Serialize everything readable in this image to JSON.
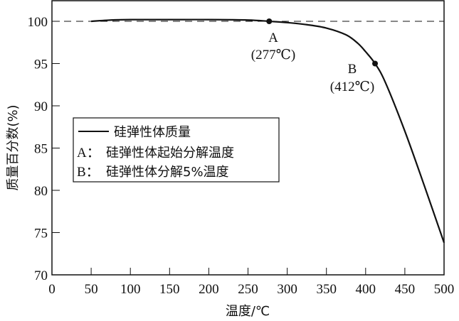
{
  "chart_data": {
    "type": "line",
    "title": "",
    "xlabel": "温度/℃",
    "ylabel": "质量百分数(%)",
    "xlim": [
      0,
      500
    ],
    "ylim": [
      70,
      102.5
    ],
    "xticks": [
      0,
      50,
      100,
      150,
      200,
      250,
      300,
      350,
      400,
      450,
      500
    ],
    "yticks": [
      70,
      75,
      80,
      85,
      90,
      95,
      100
    ],
    "grid": false,
    "reference_line": {
      "y": 100,
      "style": "dashed"
    },
    "series": [
      {
        "name": "硅弹性体质量",
        "x": [
          50,
          75,
          100,
          150,
          200,
          250,
          277,
          300,
          325,
          350,
          375,
          390,
          400,
          412,
          425,
          450,
          475,
          500
        ],
        "values": [
          100.0,
          100.15,
          100.2,
          100.2,
          100.2,
          100.15,
          100.0,
          99.85,
          99.6,
          99.2,
          98.4,
          97.4,
          96.4,
          95.0,
          92.8,
          87.0,
          80.5,
          73.8
        ]
      }
    ],
    "annotations": [
      {
        "label": "A",
        "text": "(277℃)",
        "x": 277,
        "y": 100.0
      },
      {
        "label": "B",
        "text": "(412℃)",
        "x": 412,
        "y": 95.0
      }
    ],
    "legend": {
      "position": "center-left",
      "entries": [
        "硅弹性体质量",
        "A：硅弹性体起始分解温度",
        "B：硅弹性体分解5%温度"
      ]
    }
  },
  "legend": {
    "line_label": "硅弹性体质量",
    "a_label": "A：",
    "a_text": "硅弹性体起始分解温度",
    "b_label": "B：",
    "b_text": "硅弹性体分解5%温度"
  },
  "annotations": {
    "a_letter": "A",
    "a_temp": "(277℃)",
    "b_letter": "B",
    "b_temp": "(412℃)"
  },
  "axes": {
    "xlabel": "温度/℃",
    "ylabel": "质量百分数(%)"
  }
}
